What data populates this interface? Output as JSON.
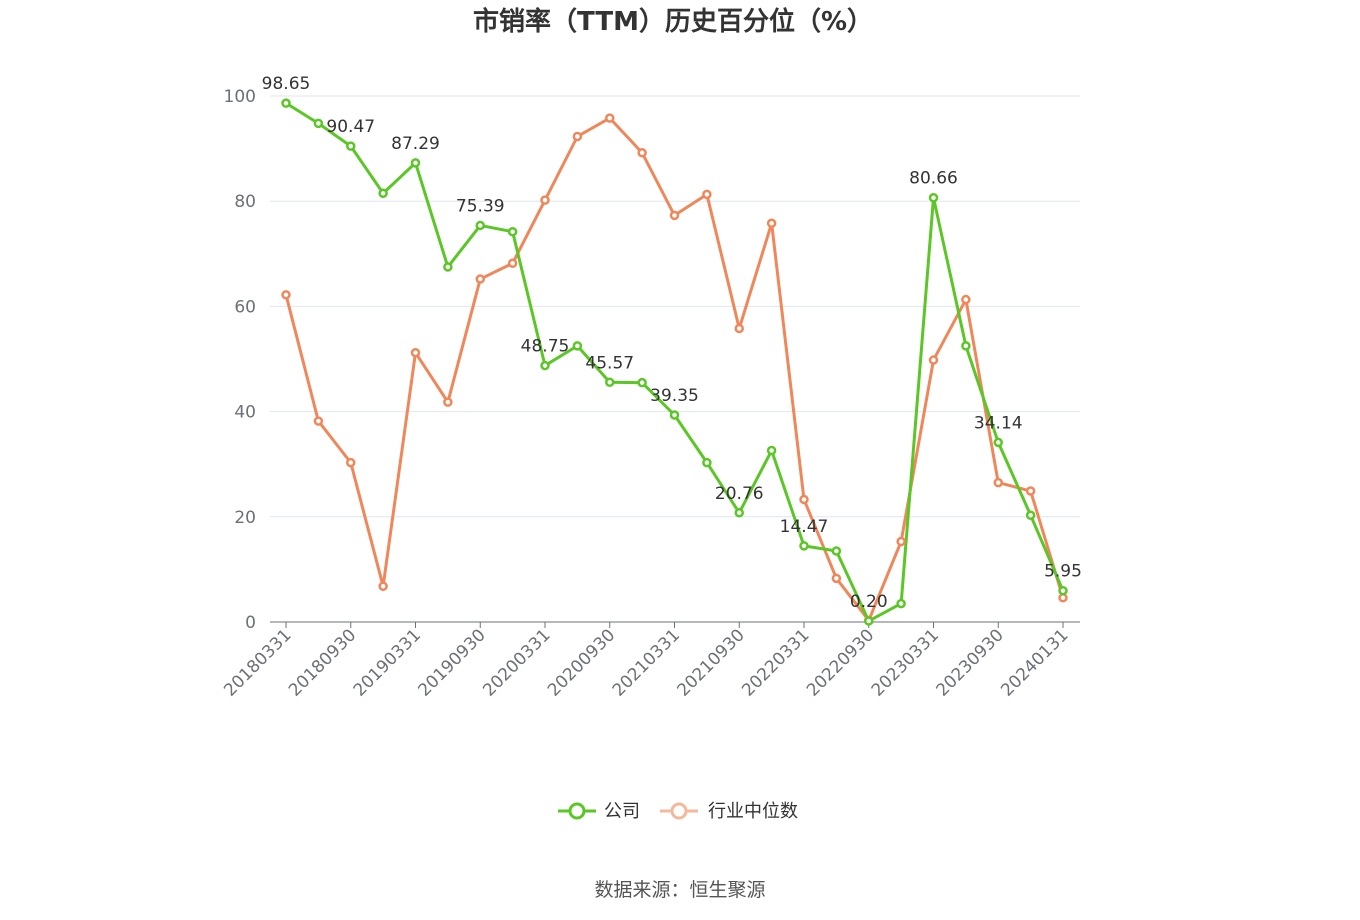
{
  "chart_data": {
    "type": "line",
    "title": "市销率（TTM）历史百分位（%）",
    "xlabel": "",
    "ylabel": "",
    "ylim": [
      0,
      100
    ],
    "yticks": [
      0,
      20,
      40,
      60,
      80,
      100
    ],
    "grid": true,
    "legend_position": "bottom",
    "x": [
      "20180331",
      "20180630",
      "20180930",
      "20181231",
      "20190331",
      "20190630",
      "20190930",
      "20191231",
      "20200331",
      "20200630",
      "20200930",
      "20201231",
      "20210331",
      "20210630",
      "20210930",
      "20211231",
      "20220331",
      "20220630",
      "20220930",
      "20221231",
      "20230331",
      "20230630",
      "20230930",
      "20231231",
      "20240131"
    ],
    "xtick_labels": [
      "20180331",
      "20180930",
      "20190331",
      "20190930",
      "20200331",
      "20200930",
      "20210331",
      "20210930",
      "20220331",
      "20220930",
      "20230331",
      "20230930",
      "20240131"
    ],
    "series": [
      {
        "name": "公司",
        "color": "#5ac726",
        "values": [
          98.65,
          94.8,
          90.47,
          81.5,
          87.29,
          67.5,
          75.39,
          74.2,
          48.75,
          52.5,
          45.57,
          45.5,
          39.35,
          30.3,
          20.76,
          32.6,
          14.47,
          13.5,
          0.2,
          3.5,
          80.66,
          52.5,
          34.14,
          20.3,
          5.95
        ],
        "data_labels": [
          {
            "index": 0,
            "text": "98.65"
          },
          {
            "index": 2,
            "text": "90.47"
          },
          {
            "index": 4,
            "text": "87.29"
          },
          {
            "index": 6,
            "text": "75.39"
          },
          {
            "index": 8,
            "text": "48.75"
          },
          {
            "index": 10,
            "text": "45.57"
          },
          {
            "index": 12,
            "text": "39.35"
          },
          {
            "index": 14,
            "text": "20.76"
          },
          {
            "index": 16,
            "text": "14.47"
          },
          {
            "index": 18,
            "text": "0.20"
          },
          {
            "index": 20,
            "text": "80.66"
          },
          {
            "index": 22,
            "text": "34.14"
          },
          {
            "index": 24,
            "text": "5.95"
          }
        ]
      },
      {
        "name": "行业中位数",
        "color": "#f0875a",
        "values": [
          62.2,
          38.2,
          30.3,
          6.8,
          51.2,
          41.8,
          65.2,
          68.2,
          80.2,
          92.3,
          95.8,
          89.2,
          77.3,
          81.3,
          55.8,
          75.8,
          23.3,
          8.3,
          0.3,
          15.3,
          49.8,
          61.3,
          26.5,
          24.9,
          4.6
        ]
      }
    ]
  },
  "source": "数据来源：恒生聚源"
}
